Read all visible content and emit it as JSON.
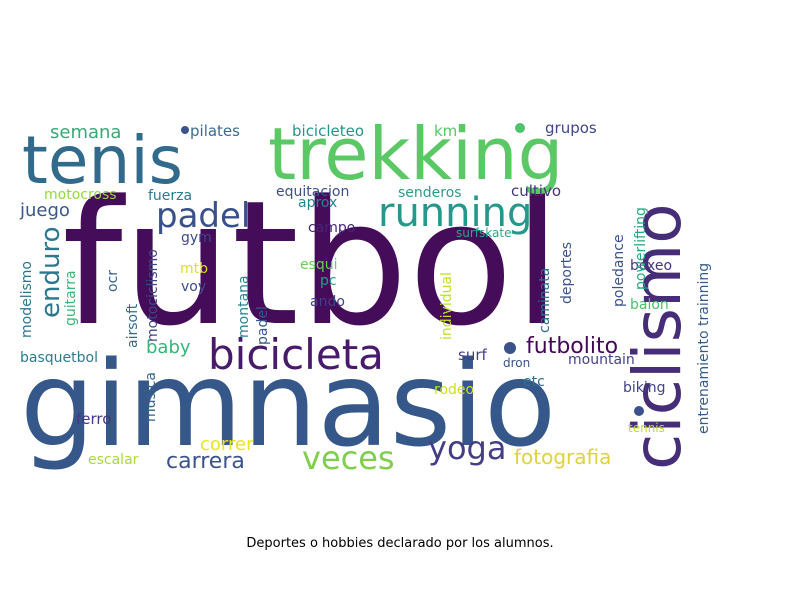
{
  "caption": "Deportes o hobbies declarado por los alumnos.",
  "words": [
    {
      "text": "futbol",
      "color": "#450c5a"
    },
    {
      "text": "gimnasio",
      "color": "#35578a"
    },
    {
      "text": "trekking",
      "color": "#5ac864"
    },
    {
      "text": "tenis",
      "color": "#326a8c"
    },
    {
      "text": "ciclismo",
      "color": "#462d78"
    },
    {
      "text": "running",
      "color": "#25978b"
    },
    {
      "text": "bicicleta",
      "color": "#481a6c"
    },
    {
      "text": "padel",
      "color": "#39508a"
    },
    {
      "text": "veces",
      "color": "#7fcf4b"
    },
    {
      "text": "yoga",
      "color": "#433e85"
    },
    {
      "text": "carrera",
      "color": "#3b528b"
    },
    {
      "text": "enduro",
      "color": "#2a788e"
    },
    {
      "text": "futbolito",
      "color": "#450559"
    },
    {
      "text": "fotografia",
      "color": "#e0d33a"
    },
    {
      "text": "semana",
      "color": "#3aa776"
    },
    {
      "text": "juego",
      "color": "#38588c"
    },
    {
      "text": "correr",
      "color": "#eae51a"
    },
    {
      "text": "baby",
      "color": "#34b679"
    },
    {
      "text": "pilates",
      "color": "#3a6b8f"
    },
    {
      "text": "bicicleteo",
      "color": "#22958b"
    },
    {
      "text": "km",
      "color": "#57c766"
    },
    {
      "text": "grupos",
      "color": "#404687"
    },
    {
      "text": "motocross",
      "color": "#94d840"
    },
    {
      "text": "fuerza",
      "color": "#2a7b8e"
    },
    {
      "text": "equitacion",
      "color": "#3b5089"
    },
    {
      "text": "senderos",
      "color": "#2d9b88"
    },
    {
      "text": "cultivo",
      "color": "#46347e"
    },
    {
      "text": "aprox",
      "color": "#25878e"
    },
    {
      "text": "gym",
      "color": "#3e4a89"
    },
    {
      "text": "campo",
      "color": "#462676"
    },
    {
      "text": "esqui",
      "color": "#6dcc5a"
    },
    {
      "text": "pc",
      "color": "#20a486"
    },
    {
      "text": "mtb",
      "color": "#ddde2a"
    },
    {
      "text": "voy",
      "color": "#3e4c8a"
    },
    {
      "text": "ando",
      "color": "#424086"
    },
    {
      "text": "boxeo",
      "color": "#46337d"
    },
    {
      "text": "balon",
      "color": "#4ac16d"
    },
    {
      "text": "surf",
      "color": "#433e85"
    },
    {
      "text": "dron",
      "color": "#3b5289"
    },
    {
      "text": "etc",
      "color": "#2d718e"
    },
    {
      "text": "mountain",
      "color": "#414387"
    },
    {
      "text": "biking",
      "color": "#414287"
    },
    {
      "text": "rodeo",
      "color": "#cde11d"
    },
    {
      "text": "tennis",
      "color": "#bedf26"
    },
    {
      "text": "ferro",
      "color": "#453680"
    },
    {
      "text": "escalar",
      "color": "#a8db34"
    },
    {
      "text": "basquetbol",
      "color": "#2b7c8e"
    },
    {
      "text": "surfskate",
      "color": "#2aa983"
    },
    {
      "text": "modelismo",
      "color": "#29788e"
    },
    {
      "text": "guitarra",
      "color": "#37b878"
    },
    {
      "text": "ocr",
      "color": "#33628d"
    },
    {
      "text": "airsoft",
      "color": "#2e6e8e"
    },
    {
      "text": "musica",
      "color": "#32648e"
    },
    {
      "text": "motociclismo",
      "color": "#3f4889"
    },
    {
      "text": "montana",
      "color": "#25858e"
    },
    {
      "text": "padel",
      "color": "#37588c"
    },
    {
      "text": "individual",
      "color": "#bde026"
    },
    {
      "text": "caminata",
      "color": "#2e6f8e"
    },
    {
      "text": "deportes",
      "color": "#3b528b"
    },
    {
      "text": "poledance",
      "color": "#3b528b"
    },
    {
      "text": "powerlifting",
      "color": "#23a983"
    },
    {
      "text": "entrenamiento trainning",
      "color": "#365c8d"
    },
    {
      "text": "dot",
      "color": "#3b528b"
    },
    {
      "text": "dot",
      "color": "#4ec36b"
    },
    {
      "text": "dot",
      "color": "#3b528b"
    },
    {
      "text": "dot",
      "color": "#3b528b"
    }
  ]
}
